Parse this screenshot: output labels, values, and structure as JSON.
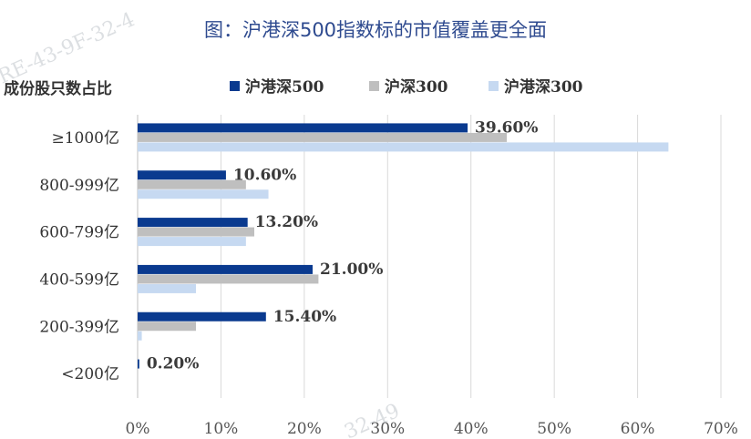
{
  "chart_data": {
    "type": "bar",
    "orientation": "horizontal",
    "title": "图：沪港深500指数标的市值覆盖更全面",
    "ylabel": "成份股只数占比",
    "categories": [
      "≥1000亿",
      "800-999亿",
      "600-799亿",
      "400-599亿",
      "200-399亿",
      "<200亿"
    ],
    "series": [
      {
        "name": "沪港深500",
        "color": "#0a3a8f",
        "values": [
          39.6,
          10.6,
          13.2,
          21.0,
          15.4,
          0.2
        ],
        "labels": [
          "39.60%",
          "10.60%",
          "13.20%",
          "21.00%",
          "15.40%",
          "0.20%"
        ]
      },
      {
        "name": "沪深300",
        "color": "#bfbfbf",
        "values": [
          44.3,
          13.0,
          14.0,
          21.7,
          7.0,
          0.0
        ]
      },
      {
        "name": "沪港深300",
        "color": "#c6d9f1",
        "values": [
          63.7,
          15.7,
          13.0,
          7.0,
          0.5,
          0.0
        ]
      }
    ],
    "xlim": [
      0,
      70
    ],
    "xticks": [
      "0%",
      "10%",
      "20%",
      "30%",
      "40%",
      "50%",
      "60%",
      "70%"
    ],
    "grid": true,
    "legend_position": "top"
  },
  "watermarks": [
    "RE-43-9F-32-4",
    "32-49"
  ]
}
